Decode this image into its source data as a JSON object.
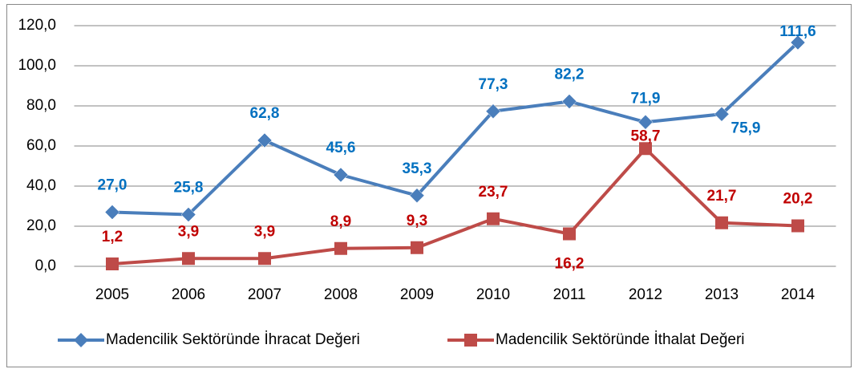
{
  "chart_data": {
    "type": "line",
    "categories": [
      "2005",
      "2006",
      "2007",
      "2008",
      "2009",
      "2010",
      "2011",
      "2012",
      "2013",
      "2014"
    ],
    "series": [
      {
        "name": "Madencilik Sektöründe İhracat Değeri",
        "color": "#4a7ebb",
        "label_color": "#0070c0",
        "values": [
          27.0,
          25.8,
          62.8,
          45.6,
          35.3,
          77.3,
          82.2,
          71.9,
          75.9,
          111.6
        ],
        "value_labels": [
          "27,0",
          "25,8",
          "62,8",
          "45,6",
          "35,3",
          "77,3",
          "82,2",
          "71,9",
          "75,9",
          "111,6"
        ]
      },
      {
        "name": "Madencilik Sektöründe İthalat Değeri",
        "color": "#be4b48",
        "label_color": "#c00000",
        "values": [
          1.2,
          3.9,
          3.9,
          8.9,
          9.3,
          23.7,
          16.2,
          58.7,
          21.7,
          20.2
        ],
        "value_labels": [
          "1,2",
          "3,9",
          "3,9",
          "8,9",
          "9,3",
          "23,7",
          "16,2",
          "58,7",
          "21,7",
          "20,2"
        ]
      }
    ],
    "ylim": [
      0,
      120
    ],
    "yticks": [
      {
        "value": 0,
        "label": "0,0"
      },
      {
        "value": 20,
        "label": "20,0"
      },
      {
        "value": 40,
        "label": "40,0"
      },
      {
        "value": 60,
        "label": "60,0"
      },
      {
        "value": 80,
        "label": "80,0"
      },
      {
        "value": 100,
        "label": "100,0"
      },
      {
        "value": 120,
        "label": "120,0"
      }
    ],
    "grid": true,
    "legend": "bottom"
  }
}
